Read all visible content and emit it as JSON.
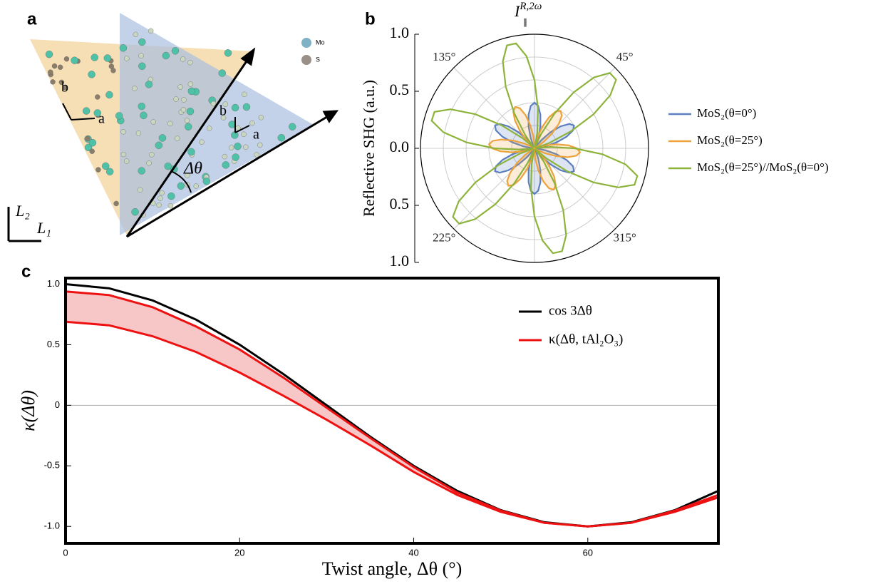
{
  "panel_a": {
    "panel_label": "a",
    "vec_a1": "a",
    "vec_b1": "b",
    "vec_a2": "a",
    "vec_b2": "b",
    "angle": "Δθ",
    "atom_mo": "Mo",
    "atom_s": "S",
    "axis_l2": "L₂",
    "axis_l1": "L₁"
  },
  "chart_data": [
    {
      "type": "polar",
      "panel_label": "b",
      "title": "I",
      "title_sup": "R,2ω",
      "title_sub": "∥",
      "ylabel": "Reflective SHG (a.u.)",
      "rlim": [
        0,
        1
      ],
      "rticks": [
        {
          "value": 0,
          "label": "0.0"
        },
        0.5,
        {
          "value": 1,
          "label": "1.0"
        }
      ],
      "rgrid": [
        0.2,
        0.4,
        0.6,
        0.8
      ],
      "thetaticks": [
        {
          "value": 45,
          "label": "45°"
        },
        {
          "value": 135,
          "label": "135°"
        },
        {
          "value": 225,
          "label": "225°"
        },
        {
          "value": 315,
          "label": "315°"
        }
      ],
      "theta": [
        0,
        5,
        10,
        15,
        20,
        25,
        30,
        35,
        40,
        45,
        50,
        55,
        60,
        65,
        70,
        75,
        80,
        85,
        90,
        95,
        100,
        105,
        110,
        115,
        120,
        125,
        130,
        135,
        140,
        145,
        150,
        155,
        160,
        165,
        170,
        175,
        180,
        185,
        190,
        195,
        200,
        205,
        210,
        215,
        220,
        225,
        230,
        235,
        240,
        245,
        250,
        255,
        260,
        265,
        270,
        275,
        280,
        285,
        290,
        295,
        300,
        305,
        310,
        315,
        320,
        325,
        330,
        335,
        340,
        345,
        350,
        355
      ],
      "series": [
        {
          "name": "MoS₂(θ=0°)",
          "color": "#5b7fbf",
          "values": [
            0,
            0.027,
            0.1,
            0.2,
            0.3,
            0.373,
            0.4,
            0.373,
            0.3,
            0.2,
            0.1,
            0.027,
            0,
            0.027,
            0.1,
            0.2,
            0.3,
            0.373,
            0.4,
            0.373,
            0.3,
            0.2,
            0.1,
            0.027,
            0,
            0.027,
            0.1,
            0.2,
            0.3,
            0.373,
            0.4,
            0.373,
            0.3,
            0.2,
            0.1,
            0.027,
            0,
            0.027,
            0.1,
            0.2,
            0.3,
            0.373,
            0.4,
            0.373,
            0.3,
            0.2,
            0.1,
            0.027,
            0,
            0.027,
            0.1,
            0.2,
            0.3,
            0.373,
            0.4,
            0.373,
            0.3,
            0.2,
            0.1,
            0.027,
            0,
            0.027,
            0.1,
            0.2,
            0.3,
            0.373,
            0.4,
            0.373,
            0.3,
            0.2,
            0.1,
            0.027
          ]
        },
        {
          "name": "MoS₂(θ=25°)",
          "color": "#eea23a",
          "values": [
            0.373,
            0.3,
            0.2,
            0.1,
            0.027,
            0,
            0.027,
            0.1,
            0.2,
            0.3,
            0.373,
            0.4,
            0.373,
            0.3,
            0.2,
            0.1,
            0.027,
            0,
            0.027,
            0.1,
            0.2,
            0.3,
            0.373,
            0.4,
            0.373,
            0.3,
            0.2,
            0.1,
            0.027,
            0,
            0.027,
            0.1,
            0.2,
            0.3,
            0.373,
            0.4,
            0.373,
            0.3,
            0.2,
            0.1,
            0.027,
            0,
            0.027,
            0.1,
            0.2,
            0.3,
            0.373,
            0.4,
            0.373,
            0.3,
            0.2,
            0.1,
            0.027,
            0,
            0.027,
            0.1,
            0.2,
            0.3,
            0.373,
            0.4,
            0.373,
            0.3,
            0.2,
            0.1,
            0.027,
            0,
            0.027,
            0.1,
            0.2,
            0.3,
            0.373,
            0.4
          ]
        },
        {
          "name": "MoS₂(θ=25°)//MoS₂(θ=0°)",
          "color": "#8db33a",
          "values": [
            0.352,
            0.139,
            0.016,
            0.016,
            0.139,
            0.352,
            0.598,
            0.811,
            0.934,
            0.934,
            0.811,
            0.598,
            0.352,
            0.139,
            0.016,
            0.016,
            0.139,
            0.352,
            0.598,
            0.811,
            0.934,
            0.934,
            0.811,
            0.598,
            0.352,
            0.139,
            0.016,
            0.016,
            0.139,
            0.352,
            0.598,
            0.811,
            0.934,
            0.934,
            0.811,
            0.598,
            0.352,
            0.139,
            0.016,
            0.016,
            0.139,
            0.352,
            0.598,
            0.811,
            0.934,
            0.934,
            0.811,
            0.598,
            0.352,
            0.139,
            0.016,
            0.016,
            0.139,
            0.352,
            0.598,
            0.811,
            0.934,
            0.934,
            0.811,
            0.598,
            0.352,
            0.139,
            0.016,
            0.016,
            0.139,
            0.352,
            0.598,
            0.811,
            0.934,
            0.934,
            0.811,
            0.598
          ]
        }
      ]
    },
    {
      "type": "line",
      "panel_label": "c",
      "xlabel": "Twist angle, Δθ (°)",
      "ylabel": "κ(Δθ)",
      "x": [
        0,
        5,
        10,
        15,
        20,
        25,
        30,
        35,
        40,
        45,
        50,
        55,
        60,
        65,
        70,
        75
      ],
      "xlim": [
        0,
        75
      ],
      "xticks": [
        0,
        20,
        40,
        60
      ],
      "ylim": [
        -1.14,
        1.05
      ],
      "yticks": [
        {
          "value": 1,
          "label": "1.0"
        },
        0.5,
        0,
        -0.5,
        {
          "value": -1,
          "label": "-1.0"
        }
      ],
      "series": [
        {
          "name": "cos 3Δθ",
          "color": "#000000",
          "values": [
            1,
            0.966,
            0.866,
            0.707,
            0.5,
            0.259,
            0,
            -0.259,
            -0.5,
            -0.707,
            -0.866,
            -0.966,
            -1,
            -0.966,
            -0.866,
            -0.707
          ]
        },
        {
          "name": "κ(Δθ, tAl₂O₃)",
          "color": "#ee1111",
          "fill": "#f7c6c6",
          "values": [
            0.94,
            0.91,
            0.81,
            0.65,
            0.46,
            0.23,
            -0.02,
            -0.27,
            -0.51,
            -0.72,
            -0.87,
            -0.97,
            -1,
            -0.97,
            -0.87,
            -0.74
          ],
          "lower": [
            0.69,
            0.66,
            0.57,
            0.44,
            0.27,
            0.08,
            -0.12,
            -0.33,
            -0.55,
            -0.74,
            -0.88,
            -0.97,
            -1,
            -0.97,
            -0.88,
            -0.76
          ]
        }
      ]
    }
  ]
}
